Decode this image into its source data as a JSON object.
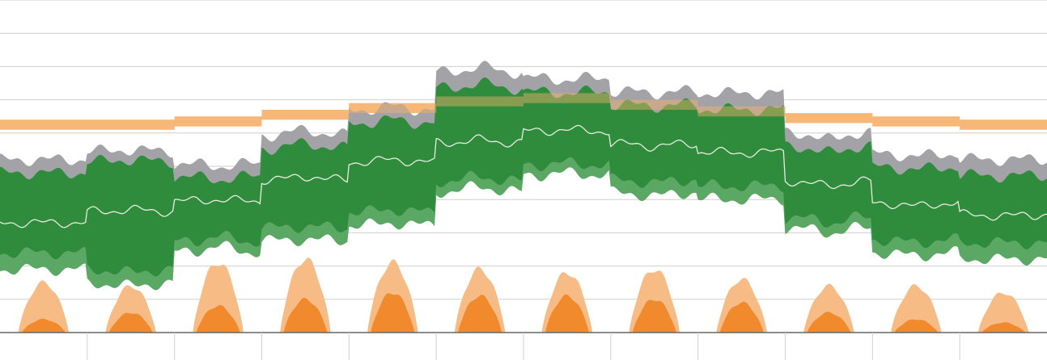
{
  "chart_data": {
    "type": "area",
    "title": "",
    "xlabel": "",
    "ylabel": "",
    "x_range": [
      0,
      12
    ],
    "ylim": [
      0,
      100
    ],
    "months": 12,
    "grid": true,
    "legend": "none",
    "colors": {
      "grid": "#cfcfcf",
      "axis": "#666666",
      "gray_band": "#a2a2a7",
      "dark_green": "#2f8c3c",
      "light_green": "#5aa863",
      "median_line": "#e9ecdf",
      "orange_band": "#f6b26b",
      "light_orange": "#f7bc86",
      "dark_orange": "#f08a2c"
    },
    "orange_band": {
      "lower": [
        61,
        61,
        62,
        64,
        66,
        68,
        69,
        67,
        65,
        63,
        62,
        61
      ],
      "upper": [
        64,
        64,
        65,
        67,
        69,
        71,
        72,
        70,
        68,
        66,
        65,
        64
      ]
    },
    "series": [
      {
        "name": "",
        "kind": "temperature",
        "gray_upper": [
          52,
          55,
          50,
          61,
          68,
          80,
          76,
          72,
          72,
          58,
          53,
          52
        ],
        "green_upper": [
          48,
          52,
          46,
          57,
          64,
          75,
          72,
          68,
          67,
          54,
          49,
          47
        ],
        "median": [
          33,
          37,
          40,
          47,
          52,
          58,
          61,
          56,
          54,
          44,
          38,
          35
        ],
        "light_lower": [
          24,
          18,
          29,
          32,
          37,
          47,
          51,
          45,
          44,
          33,
          27,
          27
        ],
        "dark_lower": [
          19,
          14,
          26,
          28,
          33,
          44,
          48,
          41,
          40,
          30,
          23,
          22
        ]
      },
      {
        "name": "",
        "kind": "precipitation",
        "light_orange_peak": [
          15,
          14,
          21,
          22,
          21,
          19,
          18,
          19,
          16,
          14,
          14,
          12
        ],
        "dark_orange_peak": [
          4,
          6,
          8,
          10,
          12,
          11,
          11,
          10,
          9,
          6,
          4,
          3
        ]
      }
    ]
  }
}
